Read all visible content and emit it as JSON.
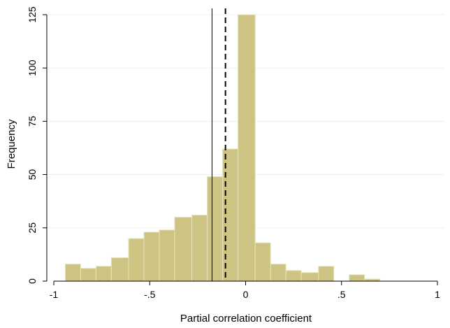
{
  "chart_data": {
    "type": "bar",
    "subtype": "histogram",
    "xlabel": "Partial correlation coefficient",
    "ylabel": "Frequency",
    "xlim": [
      -1,
      1
    ],
    "ylim": [
      0,
      125
    ],
    "x_ticks": [
      -1,
      -0.5,
      0,
      0.5,
      1
    ],
    "x_tick_labels": [
      "-1",
      "-.5",
      "0",
      ".5",
      "1"
    ],
    "y_ticks": [
      0,
      25,
      50,
      75,
      100,
      125
    ],
    "y_tick_labels": [
      "0",
      "25",
      "50",
      "75",
      "100",
      "125"
    ],
    "bins": [
      {
        "x0": -0.94,
        "x1": -0.86,
        "count": 8
      },
      {
        "x0": -0.86,
        "x1": -0.78,
        "count": 6
      },
      {
        "x0": -0.78,
        "x1": -0.7,
        "count": 7
      },
      {
        "x0": -0.7,
        "x1": -0.61,
        "count": 11
      },
      {
        "x0": -0.61,
        "x1": -0.53,
        "count": 20
      },
      {
        "x0": -0.53,
        "x1": -0.45,
        "count": 23
      },
      {
        "x0": -0.45,
        "x1": -0.37,
        "count": 24
      },
      {
        "x0": -0.37,
        "x1": -0.28,
        "count": 30
      },
      {
        "x0": -0.28,
        "x1": -0.2,
        "count": 31
      },
      {
        "x0": -0.2,
        "x1": -0.12,
        "count": 49
      },
      {
        "x0": -0.12,
        "x1": -0.04,
        "count": 62
      },
      {
        "x0": -0.04,
        "x1": 0.05,
        "count": 125
      },
      {
        "x0": 0.05,
        "x1": 0.13,
        "count": 18
      },
      {
        "x0": 0.13,
        "x1": 0.21,
        "count": 8
      },
      {
        "x0": 0.21,
        "x1": 0.29,
        "count": 5
      },
      {
        "x0": 0.29,
        "x1": 0.38,
        "count": 4
      },
      {
        "x0": 0.38,
        "x1": 0.46,
        "count": 7
      },
      {
        "x0": 0.46,
        "x1": 0.54,
        "count": 0
      },
      {
        "x0": 0.54,
        "x1": 0.62,
        "count": 3
      },
      {
        "x0": 0.62,
        "x1": 0.7,
        "count": 1
      }
    ],
    "reference_lines": [
      {
        "x": -0.175,
        "style": "solid"
      },
      {
        "x": -0.105,
        "style": "dashed"
      }
    ],
    "bar_fill": "#cdc484",
    "bar_stroke": "#e8e3bd",
    "grid": true,
    "grid_color": "#eaf0f3",
    "legend": false
  }
}
